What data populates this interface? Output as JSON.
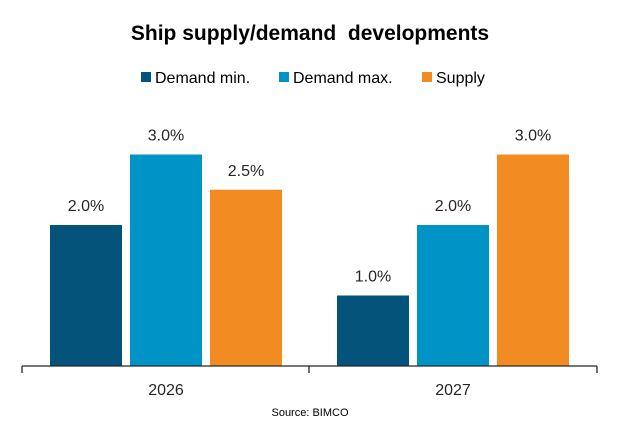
{
  "chart_data": {
    "type": "bar",
    "title": "Ship supply/demand  developments",
    "categories": [
      "2026",
      "2027"
    ],
    "series": [
      {
        "name": "Demand min.",
        "values": [
          2.0,
          1.0
        ],
        "labels": [
          "2.0%",
          "1.0%"
        ],
        "color": "#03537B"
      },
      {
        "name": "Demand max.",
        "values": [
          3.0,
          2.0
        ],
        "labels": [
          "3.0%",
          "2.0%"
        ],
        "color": "#0094C6"
      },
      {
        "name": "Supply",
        "values": [
          2.5,
          3.0
        ],
        "labels": [
          "2.5%",
          "3.0%"
        ],
        "color": "#F28C22"
      }
    ],
    "xlabel": "",
    "ylabel": "",
    "ylim": [
      0,
      3.0
    ],
    "grid": false,
    "legend": "top-center",
    "source": "Source: BIMCO"
  }
}
